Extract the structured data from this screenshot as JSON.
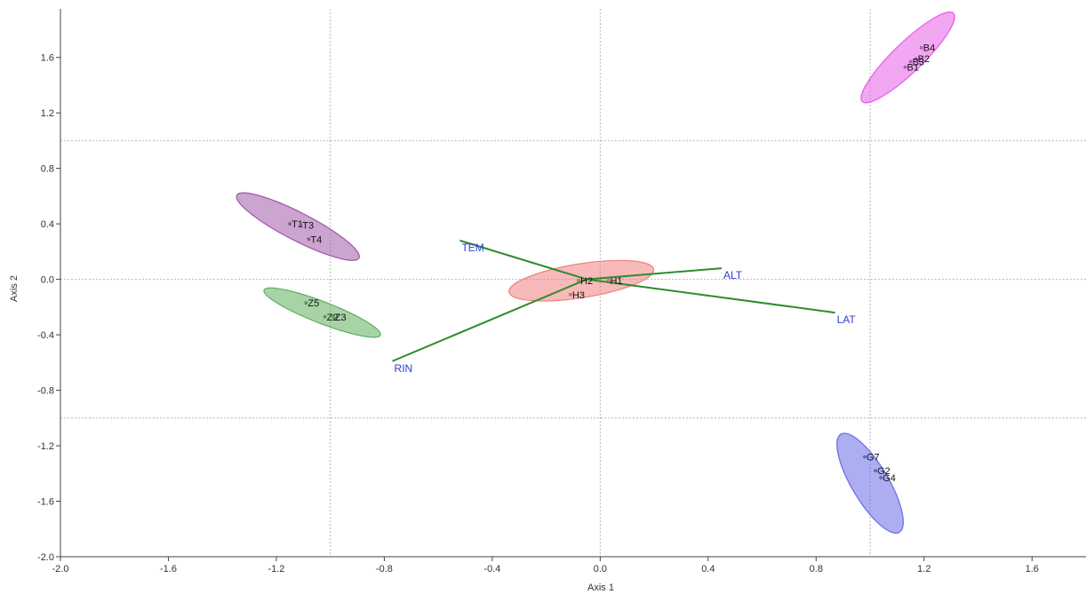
{
  "chart_data": {
    "type": "scatter",
    "xlabel": "Axis 1",
    "ylabel": "Axis 2",
    "xlim": [
      -2.0,
      1.8
    ],
    "ylim": [
      -2.0,
      1.95
    ],
    "xticks": [
      -2.0,
      -1.6,
      -1.2,
      -0.8,
      -0.4,
      0.0,
      0.4,
      0.8,
      1.2,
      1.6
    ],
    "yticks": [
      -2.0,
      -1.6,
      -1.2,
      -0.8,
      -0.4,
      0.0,
      0.4,
      0.8,
      1.2,
      1.6
    ],
    "xtick_labels": [
      "-2.0",
      "-1.6",
      "-1.2",
      "-0.8",
      "-0.4",
      "0.0",
      "0.4",
      "0.8",
      "1.2",
      "1.6"
    ],
    "ytick_labels": [
      "-2.0",
      "-1.6",
      "-1.2",
      "-0.8",
      "-0.4",
      "0.0",
      "0.4",
      "0.8",
      "1.2",
      "1.6"
    ],
    "dotted_vertical_lines": [
      -1.0,
      0.0,
      1.0
    ],
    "dotted_horizontal_lines": [
      1.0,
      0.0,
      -1.0
    ],
    "groups": [
      {
        "color": "#e55ee5",
        "ellipse": {
          "cx": 1.14,
          "cy": 1.6,
          "rx": 0.36,
          "ry": 0.06,
          "angle_deg": 62
        },
        "points": [
          {
            "label": "B4",
            "x": 1.19,
            "y": 1.67
          },
          {
            "label": "B2",
            "x": 1.17,
            "y": 1.59
          },
          {
            "label": "B3",
            "x": 1.15,
            "y": 1.57
          },
          {
            "label": "B1",
            "x": 1.13,
            "y": 1.53
          }
        ]
      },
      {
        "color": "#a05aa8",
        "ellipse": {
          "cx": -1.12,
          "cy": 0.38,
          "rx": 0.32,
          "ry": 0.065,
          "angle_deg": -45
        },
        "points": [
          {
            "label": "T1",
            "x": -1.15,
            "y": 0.4
          },
          {
            "label": "T3",
            "x": -1.11,
            "y": 0.39
          },
          {
            "label": "T4",
            "x": -1.08,
            "y": 0.29
          }
        ]
      },
      {
        "color": "#5fae5f",
        "ellipse": {
          "cx": -1.03,
          "cy": -0.24,
          "rx": 0.27,
          "ry": 0.055,
          "angle_deg": -37
        },
        "points": [
          {
            "label": "Z5",
            "x": -1.09,
            "y": -0.17
          },
          {
            "label": "Z2",
            "x": -1.02,
            "y": -0.27
          },
          {
            "label": "Z3",
            "x": -0.99,
            "y": -0.27
          }
        ]
      },
      {
        "color": "#f08080",
        "ellipse": {
          "cx": -0.07,
          "cy": -0.01,
          "rx": 0.28,
          "ry": 0.11,
          "angle_deg": 17
        },
        "points": [
          {
            "label": "H2",
            "x": -0.08,
            "y": -0.01
          },
          {
            "label": "H1",
            "x": 0.03,
            "y": -0.01
          },
          {
            "label": "H3",
            "x": -0.11,
            "y": -0.11
          }
        ]
      },
      {
        "color": "#6a6ae8",
        "ellipse": {
          "cx": 1.0,
          "cy": -1.47,
          "rx": 0.37,
          "ry": 0.07,
          "angle_deg": -73
        },
        "points": [
          {
            "label": "G7",
            "x": 0.98,
            "y": -1.28
          },
          {
            "label": "G2",
            "x": 1.02,
            "y": -1.38
          },
          {
            "label": "G4",
            "x": 1.04,
            "y": -1.43
          }
        ]
      }
    ],
    "vectors": [
      {
        "label": "TEM",
        "from": [
          -0.05,
          0.0
        ],
        "to": [
          -0.52,
          0.28
        ]
      },
      {
        "label": "ALT",
        "from": [
          -0.05,
          0.0
        ],
        "to": [
          0.45,
          0.08
        ]
      },
      {
        "label": "LAT",
        "from": [
          -0.05,
          0.0
        ],
        "to": [
          0.87,
          -0.24
        ]
      },
      {
        "label": "RIN",
        "from": [
          -0.05,
          0.0
        ],
        "to": [
          -0.77,
          -0.59
        ]
      }
    ],
    "vector_color": "#2e8b2e",
    "vector_label_color": "#2b3fd6"
  }
}
